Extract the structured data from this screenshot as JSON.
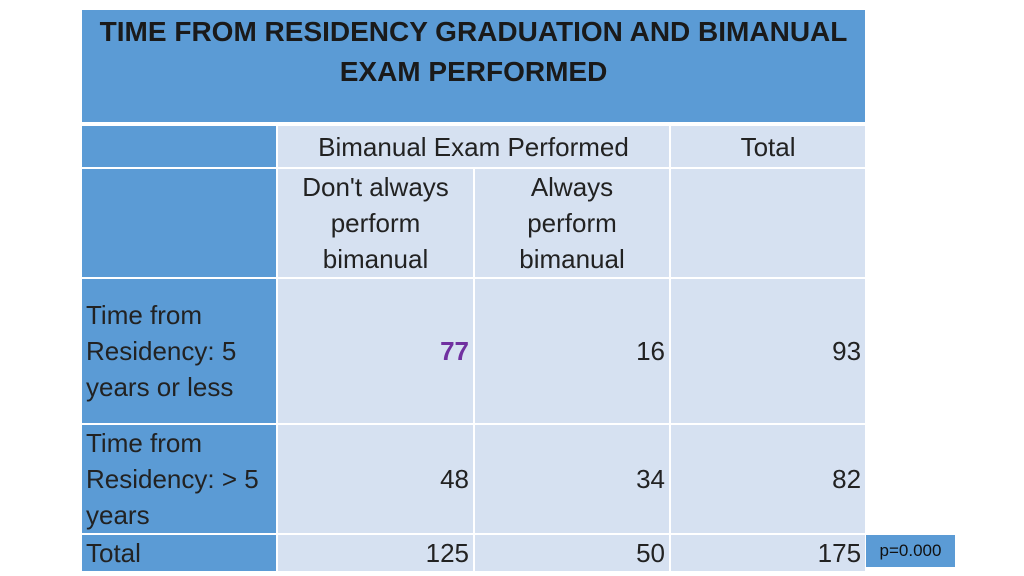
{
  "title": "TIME FROM RESIDENCY GRADUATION AND BIMANUAL EXAM PERFORMED",
  "header": {
    "group_label": "Bimanual Exam Performed",
    "total_label": "Total",
    "col1_label": "Don't always perform bimanual",
    "col2_label": "Always perform bimanual"
  },
  "rows": [
    {
      "label": "Time from Residency: 5 years or less",
      "col1": "77",
      "col2": "16",
      "total": "93"
    },
    {
      "label": "Time from Residency: > 5 years",
      "col1": "48",
      "col2": "34",
      "total": "82"
    }
  ],
  "totals": {
    "label": "Total",
    "col1": "125",
    "col2": "50",
    "total": "175"
  },
  "p_value": "p=0.000",
  "colors": {
    "header_blue": "#5b9bd5",
    "cell_light": "#d6e1f1",
    "highlight_purple": "#7030a0"
  }
}
